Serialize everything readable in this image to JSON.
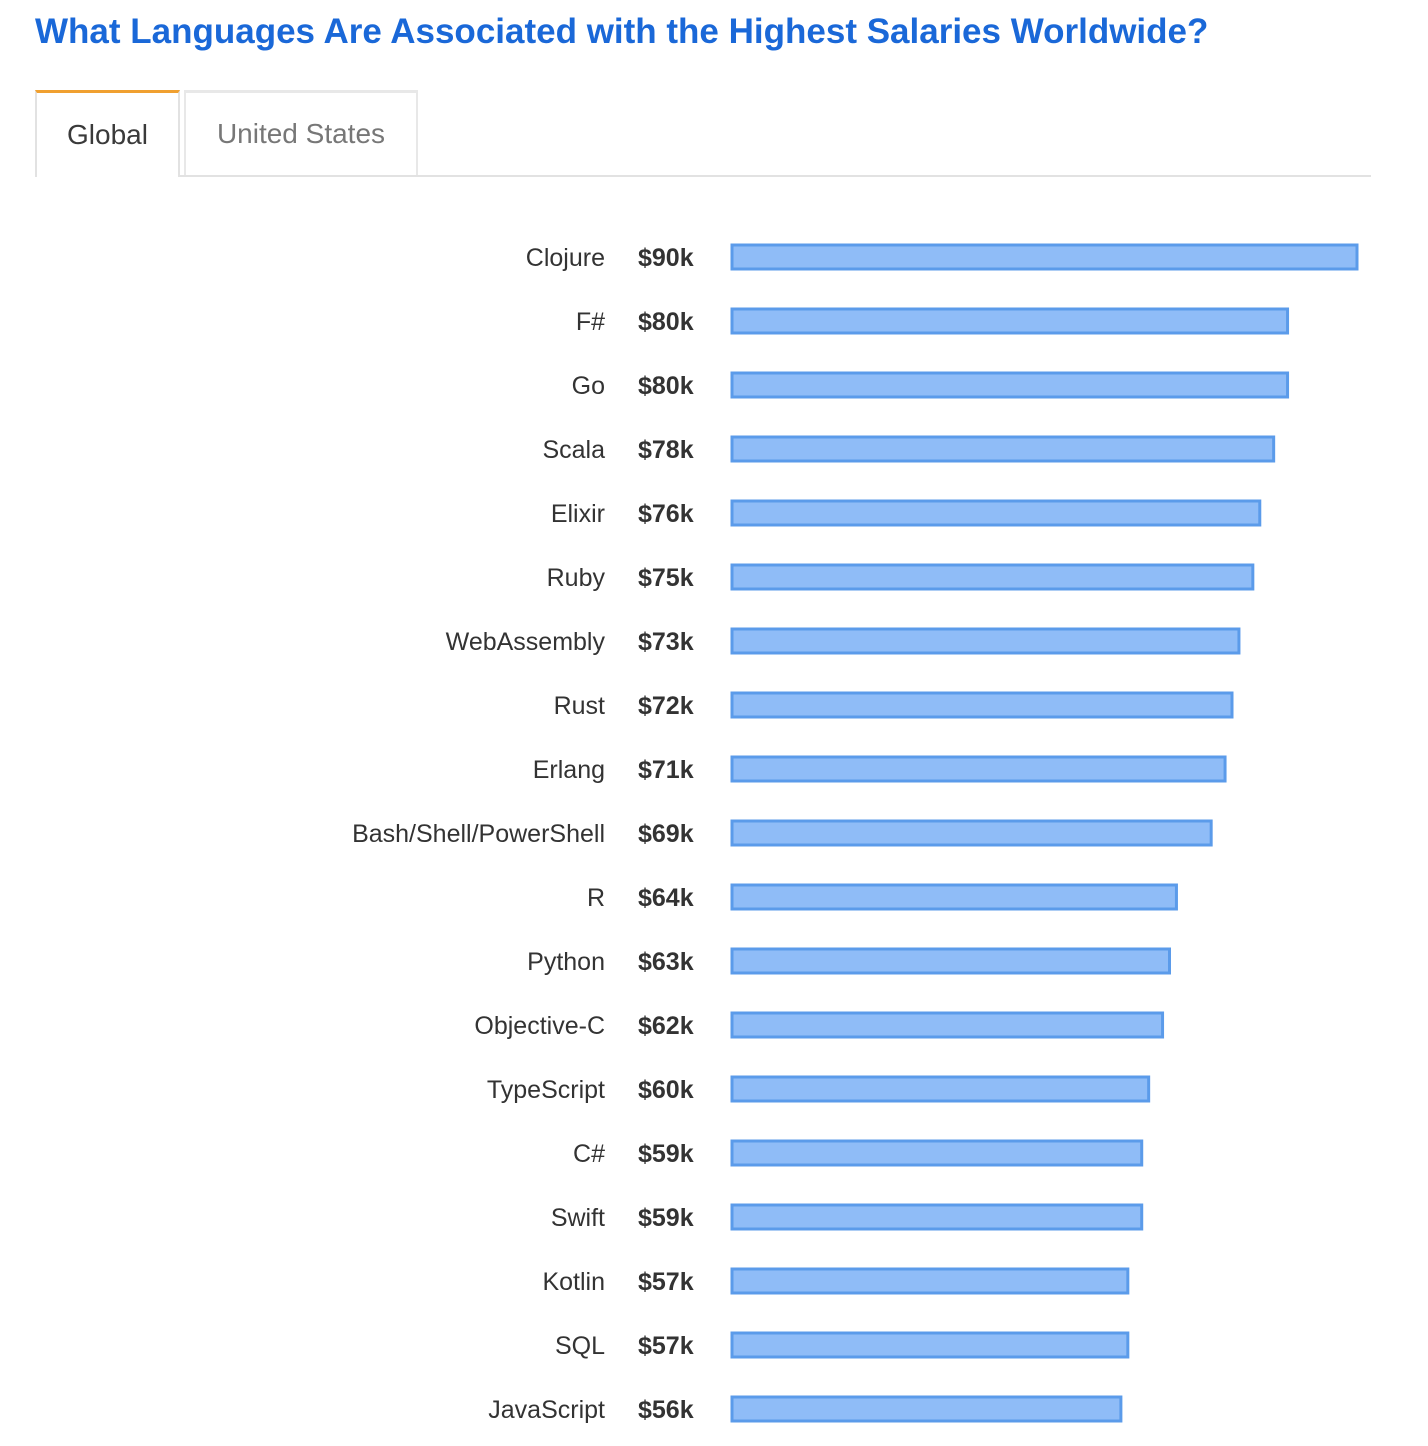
{
  "title": "What Languages Are Associated with the Highest Salaries Worldwide?",
  "tabs": [
    {
      "label": "Global",
      "active": true
    },
    {
      "label": "United States",
      "active": false
    }
  ],
  "colors": {
    "title": "#1a68d8",
    "bar_fill": "#8fbcf7",
    "bar_stroke": "#5b9bea",
    "active_tab_accent": "#f0a030"
  },
  "chart_data": {
    "type": "bar",
    "orientation": "horizontal",
    "title": "What Languages Are Associated with the Highest Salaries Worldwide?",
    "xlabel": "",
    "ylabel": "",
    "xlim": [
      0,
      90
    ],
    "unit": "thousand USD",
    "categories": [
      "Clojure",
      "F#",
      "Go",
      "Scala",
      "Elixir",
      "Ruby",
      "WebAssembly",
      "Rust",
      "Erlang",
      "Bash/Shell/PowerShell",
      "R",
      "Python",
      "Objective-C",
      "TypeScript",
      "C#",
      "Swift",
      "Kotlin",
      "SQL",
      "JavaScript"
    ],
    "values": [
      90,
      80,
      80,
      78,
      76,
      75,
      73,
      72,
      71,
      69,
      64,
      63,
      62,
      60,
      59,
      59,
      57,
      57,
      56
    ],
    "value_labels": [
      "$90k",
      "$80k",
      "$80k",
      "$78k",
      "$76k",
      "$75k",
      "$73k",
      "$72k",
      "$71k",
      "$69k",
      "$64k",
      "$63k",
      "$62k",
      "$60k",
      "$59k",
      "$59k",
      "$57k",
      "$57k",
      "$56k"
    ],
    "grid": false,
    "legend": "none"
  }
}
